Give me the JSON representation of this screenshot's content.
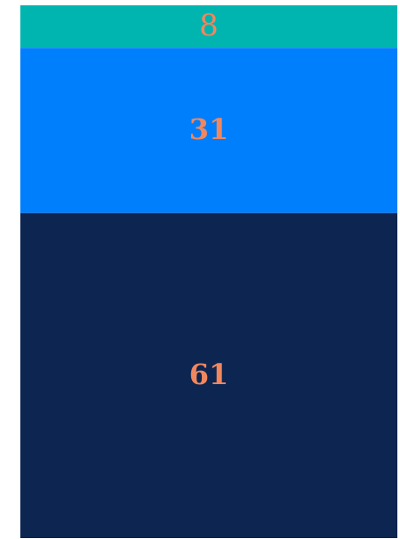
{
  "chart_data": {
    "type": "stacked-bar",
    "values": [
      8,
      31,
      61
    ],
    "colors": [
      "#00b5b0",
      "#007ffc",
      "#0c2551"
    ],
    "label_color": "#f0875f",
    "ylim": [
      0,
      100
    ]
  }
}
